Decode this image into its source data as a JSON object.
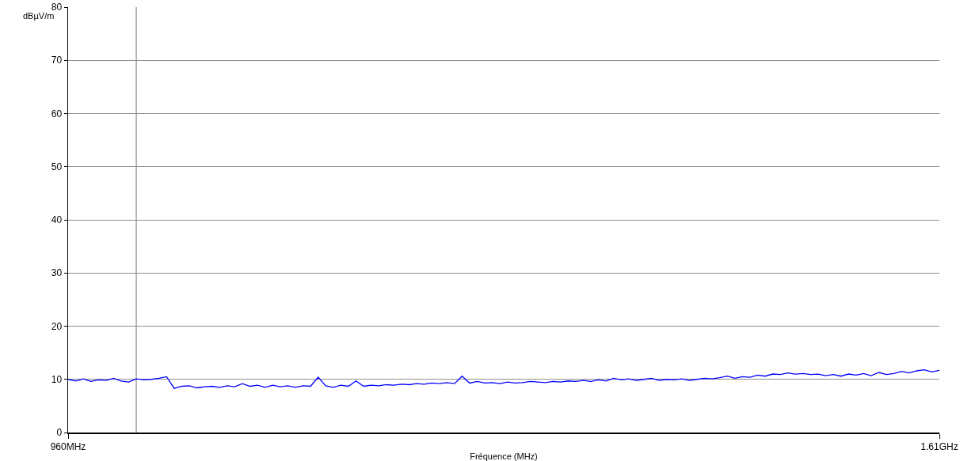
{
  "chart_data": {
    "type": "line",
    "xlabel": "Fréquence (MHz)",
    "ylabel": "dBµV/m",
    "categories": [
      "960MHz",
      null,
      null,
      null,
      null,
      null,
      null,
      null,
      null,
      null,
      null,
      null,
      null,
      null,
      null,
      null,
      null,
      null,
      null,
      null,
      null,
      null,
      null,
      null,
      null,
      null,
      null,
      null,
      null,
      null,
      null,
      null,
      null,
      null,
      null,
      null,
      null,
      null,
      null,
      null,
      null,
      null,
      null,
      null,
      null,
      null,
      null,
      null,
      null,
      null,
      null,
      null,
      null,
      null,
      null,
      null,
      null,
      null,
      null,
      null,
      null,
      null,
      null,
      null,
      null,
      null,
      null,
      null,
      null,
      null,
      null,
      null,
      null,
      null,
      null,
      null,
      null,
      null,
      null,
      null,
      null,
      null,
      null,
      null,
      null,
      null,
      null,
      null,
      null,
      null,
      null,
      null,
      null,
      null,
      null,
      null,
      null,
      null,
      null,
      null,
      null,
      null,
      null,
      null,
      null,
      null,
      null,
      null,
      null,
      null,
      null,
      null,
      null,
      null,
      null,
      "1.61GHz"
    ],
    "series": [
      {
        "color": "#0000ff",
        "values": [
          10.0,
          9.7,
          10.1,
          9.6,
          9.9,
          9.8,
          10.2,
          9.7,
          9.5,
          10.1,
          9.9,
          10.0,
          10.2,
          10.5,
          8.3,
          8.7,
          8.8,
          8.4,
          8.6,
          8.7,
          8.5,
          8.8,
          8.6,
          9.2,
          8.7,
          8.9,
          8.5,
          8.9,
          8.6,
          8.8,
          8.5,
          8.8,
          8.7,
          10.4,
          8.8,
          8.5,
          8.9,
          8.7,
          9.7,
          8.7,
          8.9,
          8.8,
          9.0,
          8.9,
          9.1,
          9.0,
          9.2,
          9.1,
          9.3,
          9.2,
          9.4,
          9.2,
          10.6,
          9.3,
          9.6,
          9.3,
          9.4,
          9.2,
          9.5,
          9.3,
          9.4,
          9.6,
          9.5,
          9.4,
          9.6,
          9.5,
          9.7,
          9.6,
          9.8,
          9.6,
          9.9,
          9.7,
          10.2,
          9.9,
          10.1,
          9.8,
          10.0,
          10.2,
          9.8,
          10.0,
          9.9,
          10.1,
          9.8,
          10.0,
          10.2,
          10.1,
          10.3,
          10.6,
          10.2,
          10.5,
          10.4,
          10.8,
          10.6,
          11.0,
          10.9,
          11.2,
          11.0,
          11.1,
          10.9,
          11.0,
          10.7,
          10.9,
          10.6,
          11.0,
          10.8,
          11.1,
          10.7,
          11.3,
          10.9,
          11.1,
          11.5,
          11.2,
          11.6,
          11.8,
          11.4,
          11.7
        ]
      }
    ],
    "ylim": [
      0,
      80
    ],
    "yticks": [
      0,
      10,
      20,
      30,
      40,
      50,
      60,
      70,
      80
    ],
    "grid": "y",
    "marker": "none",
    "line_style": "solid"
  }
}
